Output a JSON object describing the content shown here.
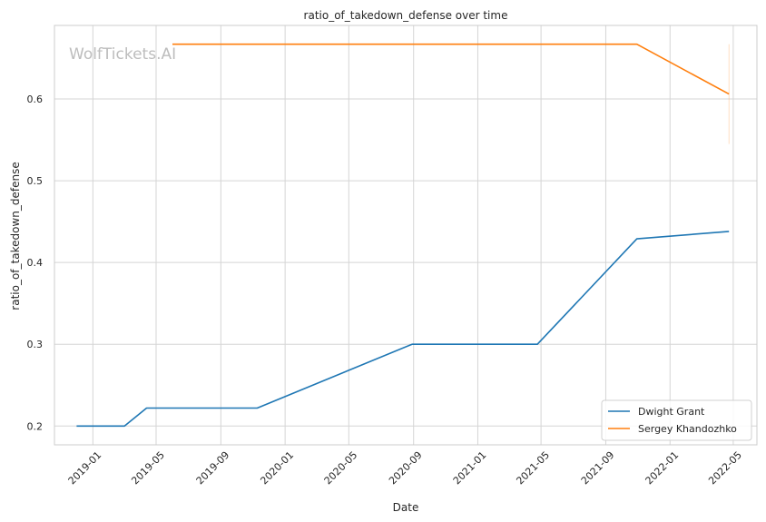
{
  "chart_data": {
    "type": "line",
    "title": "ratio_of_takedown_defense over time",
    "xlabel": "Date",
    "ylabel": "ratio_of_takedown_defense",
    "watermark": "WolfTickets.AI",
    "x_type": "date",
    "xlim": [
      "2018-10-20",
      "2022-06-15"
    ],
    "ylim": [
      0.177,
      0.69
    ],
    "x_ticks": [
      "2019-01",
      "2019-05",
      "2019-09",
      "2020-01",
      "2020-05",
      "2020-09",
      "2021-01",
      "2021-05",
      "2021-09",
      "2022-01",
      "2022-05"
    ],
    "y_ticks": [
      0.2,
      0.3,
      0.4,
      0.5,
      0.6
    ],
    "y_tick_labels": [
      "0.2",
      "0.3",
      "0.4",
      "0.5",
      "0.6"
    ],
    "grid": true,
    "legend_position": "bottom-right",
    "series": [
      {
        "name": "Dwight Grant",
        "color": "#1f77b4",
        "x": [
          "2018-12-01",
          "2019-03-02",
          "2019-04-13",
          "2019-11-09",
          "2020-08-29",
          "2021-04-24",
          "2021-10-30",
          "2022-04-23"
        ],
        "values": [
          0.2,
          0.2,
          0.222,
          0.222,
          0.3,
          0.3,
          0.429,
          0.438
        ]
      },
      {
        "name": "Sergey Khandozhko",
        "color": "#ff7f0e",
        "x": [
          "2019-06-01",
          "2021-10-30",
          "2022-04-23"
        ],
        "values": [
          0.667,
          0.667,
          0.606
        ],
        "band": {
          "x": "2022-04-23",
          "low": 0.545,
          "high": 0.667
        }
      }
    ]
  }
}
